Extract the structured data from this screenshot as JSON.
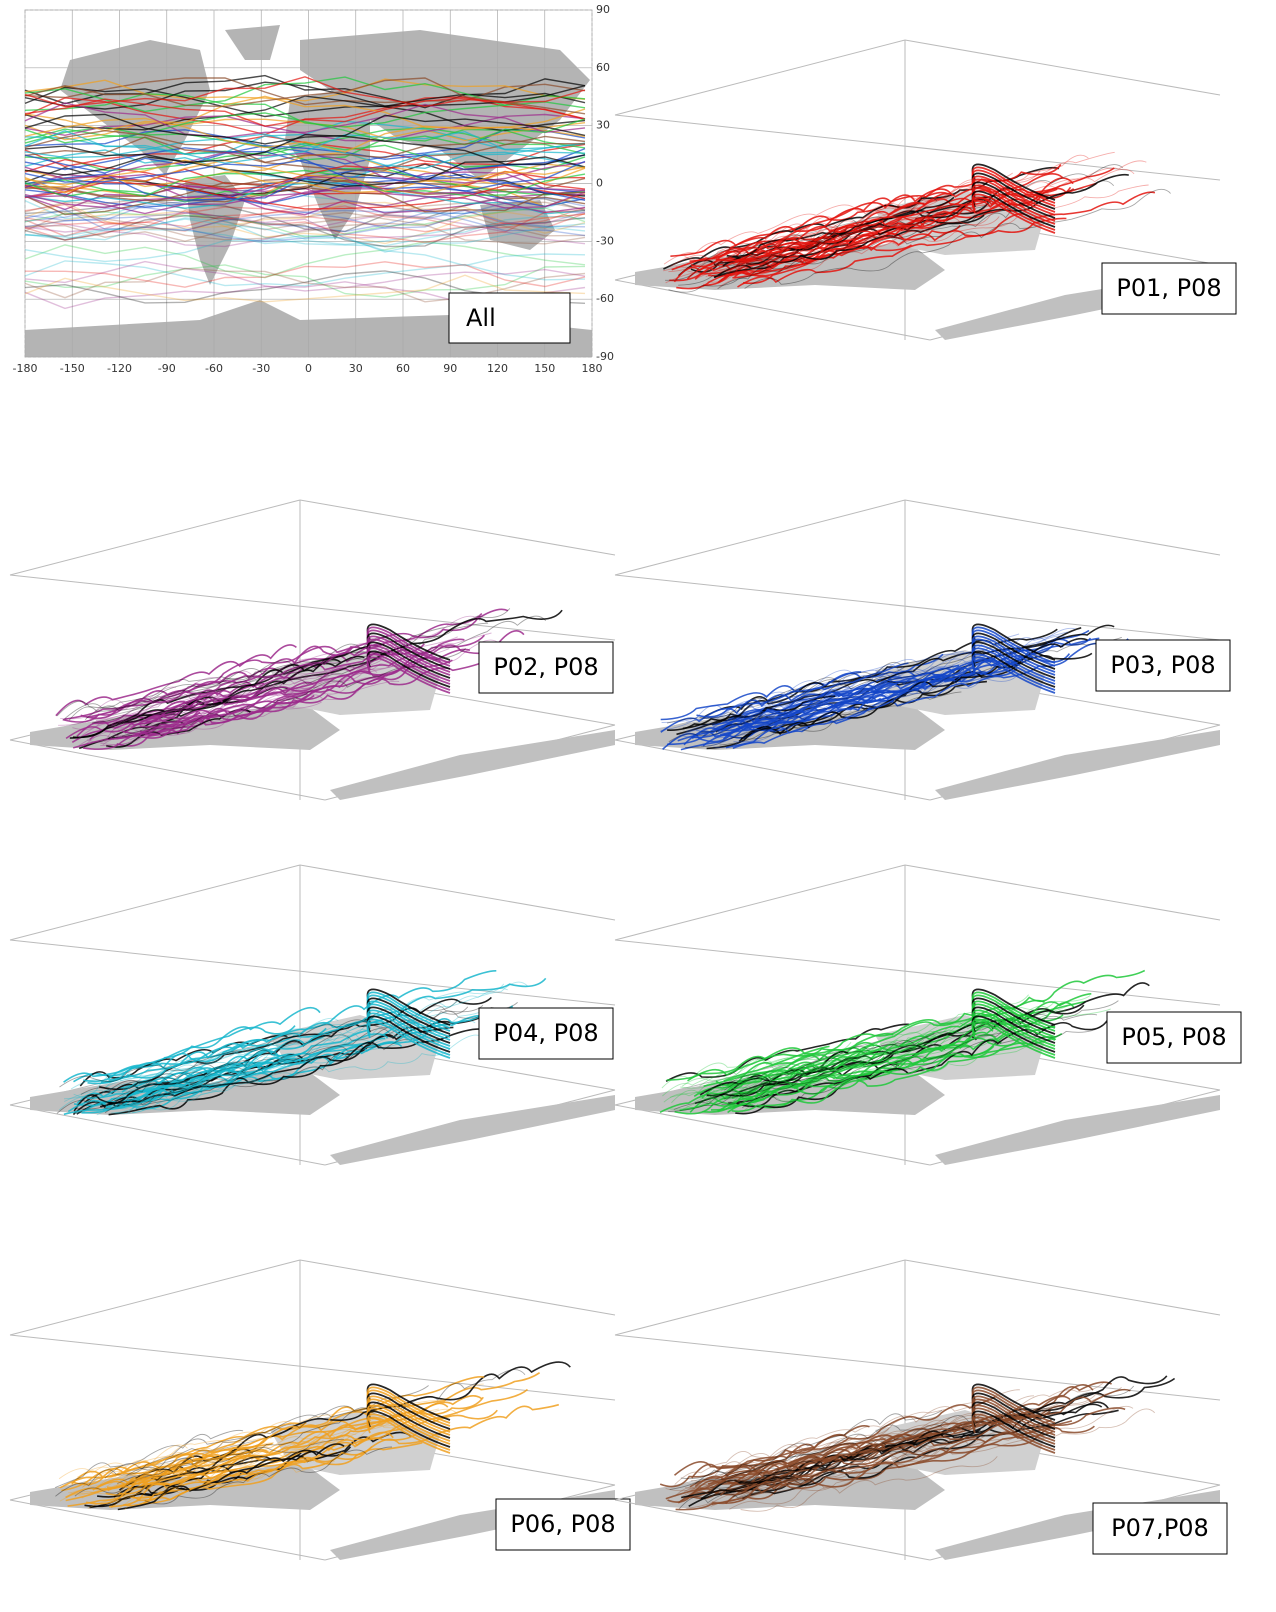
{
  "map": {
    "label": "All",
    "x_ticks": [
      -180,
      -150,
      -120,
      -90,
      -60,
      -30,
      0,
      30,
      60,
      90,
      120,
      150,
      180
    ],
    "y_ticks": [
      90,
      60,
      30,
      0,
      -30,
      -60,
      -90
    ]
  },
  "panels": [
    {
      "label": "P01, P08",
      "color": "#e3140e"
    },
    {
      "label": "P02, P08",
      "color": "#9c2a8c"
    },
    {
      "label": "P03, P08",
      "color": "#1446c8"
    },
    {
      "label": "P04, P08",
      "color": "#18b6cc"
    },
    {
      "label": "P05, P08",
      "color": "#1ec83a"
    },
    {
      "label": "P06, P08",
      "color": "#f0a020"
    },
    {
      "label": "P07,P08",
      "color": "#8a4a2a"
    }
  ]
}
